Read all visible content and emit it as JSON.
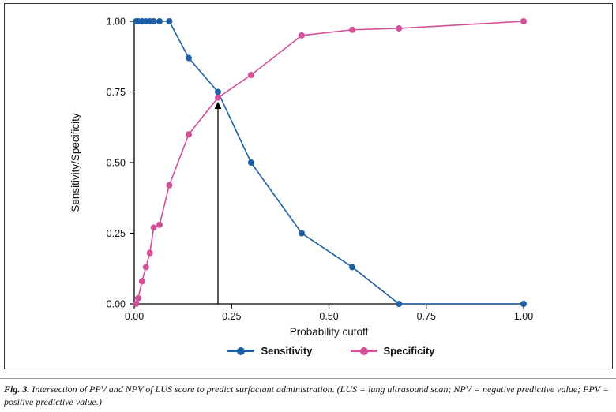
{
  "figure": {
    "caption_label": "Fig. 3.",
    "caption_text": "Intersection of PPV and NPV of LUS score to predict surfactant administration. (LUS = lung ultrasound scan; NPV = negative predictive value; PPV = positive predictive value.)"
  },
  "chart_data": {
    "type": "line",
    "title": "",
    "xlabel": "Probability cutoff",
    "ylabel": "Sensitivity/Specificity",
    "xlim": [
      0,
      1
    ],
    "ylim": [
      0,
      1
    ],
    "x_ticks": [
      0,
      0.25,
      0.5,
      0.75,
      1
    ],
    "y_ticks": [
      0,
      0.25,
      0.5,
      0.75,
      1
    ],
    "x_tick_labels": [
      "0.00",
      "0.25",
      "0.50",
      "0.75",
      "1.00"
    ],
    "y_tick_labels": [
      "0.00",
      "0.25",
      "0.50",
      "0.75",
      "1.00"
    ],
    "grid": false,
    "legend_position": "bottom",
    "series": [
      {
        "name": "Sensitivity",
        "color": "#1d5fa5",
        "points": [
          [
            0.005,
            1.0
          ],
          [
            0.01,
            1.0
          ],
          [
            0.02,
            1.0
          ],
          [
            0.03,
            1.0
          ],
          [
            0.04,
            1.0
          ],
          [
            0.05,
            1.0
          ],
          [
            0.065,
            1.0
          ],
          [
            0.09,
            1.0
          ],
          [
            0.14,
            0.87
          ],
          [
            0.215,
            0.75
          ],
          [
            0.3,
            0.5
          ],
          [
            0.43,
            0.25
          ],
          [
            0.56,
            0.13
          ],
          [
            0.68,
            0.0
          ],
          [
            1.0,
            0.0
          ]
        ]
      },
      {
        "name": "Specificity",
        "color": "#d44f99",
        "points": [
          [
            0.005,
            0.0
          ],
          [
            0.01,
            0.02
          ],
          [
            0.02,
            0.08
          ],
          [
            0.03,
            0.13
          ],
          [
            0.04,
            0.18
          ],
          [
            0.05,
            0.27
          ],
          [
            0.065,
            0.28
          ],
          [
            0.09,
            0.42
          ],
          [
            0.14,
            0.6
          ],
          [
            0.215,
            0.73
          ],
          [
            0.3,
            0.81
          ],
          [
            0.43,
            0.95
          ],
          [
            0.56,
            0.97
          ],
          [
            0.68,
            0.975
          ],
          [
            1.0,
            1.0
          ]
        ]
      }
    ],
    "annotation_arrow": {
      "x": 0.215,
      "y_from": 0.0,
      "y_to": 0.715,
      "color": "#000000"
    }
  }
}
